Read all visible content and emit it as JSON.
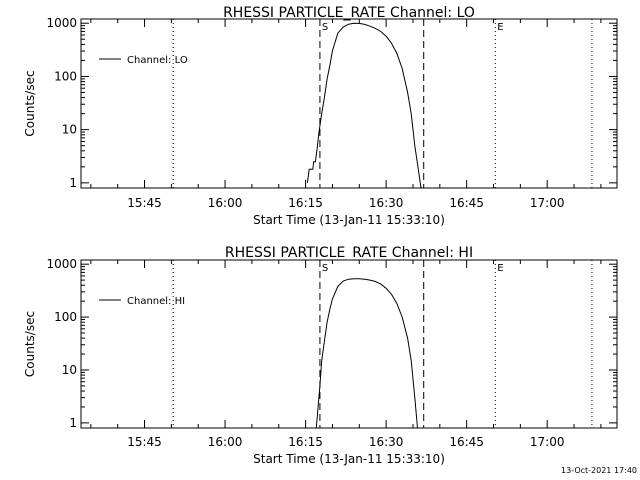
{
  "footer_timestamp": "13-Oct-2021 17:40",
  "chart_data": [
    {
      "type": "line",
      "title": "RHESSI PARTICLE_RATE Channel: LO",
      "xlabel": "Start Time (13-Jan-11 15:33:10)",
      "ylabel": "Counts/sec",
      "yscale": "log",
      "xlim": [
        "15:33:10",
        "17:13:00"
      ],
      "ylim": [
        0.8,
        1200
      ],
      "x_ticks": [
        "15:45",
        "16:00",
        "16:15",
        "16:30",
        "16:45",
        "17:00"
      ],
      "y_ticks": [
        {
          "value": 1,
          "label": "1"
        },
        {
          "value": 10,
          "label": "10"
        },
        {
          "value": 100,
          "label": "100"
        },
        {
          "value": 1000,
          "label": "1000"
        }
      ],
      "legend": {
        "position": "top-left",
        "entries": [
          "Channel: LO"
        ]
      },
      "markers": [
        {
          "time": "16:17:40",
          "label": "S",
          "style": "dashed"
        },
        {
          "time": "16:37:00",
          "label": "",
          "style": "dashed"
        },
        {
          "time": "15:50:20",
          "label": "",
          "style": "dotted"
        },
        {
          "time": "16:50:20",
          "label": "E",
          "style": "dotted"
        },
        {
          "time": "17:08:20",
          "label": "",
          "style": "dotted"
        }
      ],
      "series": [
        {
          "name": "Channel: LO",
          "x": [
            "16:15:20",
            "16:15:40",
            "16:16:20",
            "16:16:30",
            "16:16:50",
            "16:17:10",
            "16:17:30",
            "16:18:00",
            "16:18:30",
            "16:19:00",
            "16:19:30",
            "16:20:00",
            "16:21:00",
            "16:22:00",
            "16:23:00",
            "16:24:00",
            "16:25:00",
            "16:26:00",
            "16:27:00",
            "16:28:00",
            "16:29:00",
            "16:30:00",
            "16:31:00",
            "16:32:00",
            "16:33:00",
            "16:34:00",
            "16:34:40",
            "16:35:20",
            "16:36:00",
            "16:36:30"
          ],
          "y": [
            1.0,
            1.8,
            1.8,
            2.5,
            2.5,
            4.5,
            9.0,
            20,
            40,
            90,
            160,
            300,
            650,
            850,
            960,
            1000,
            990,
            950,
            880,
            800,
            700,
            570,
            420,
            270,
            140,
            50,
            20,
            5.0,
            1.8,
            0.8
          ]
        }
      ]
    },
    {
      "type": "line",
      "title": "RHESSI PARTICLE_RATE Channel: HI",
      "xlabel": "Start Time (13-Jan-11 15:33:10)",
      "ylabel": "Counts/sec",
      "yscale": "log",
      "xlim": [
        "15:33:10",
        "17:13:00"
      ],
      "ylim": [
        0.8,
        1200
      ],
      "x_ticks": [
        "15:45",
        "16:00",
        "16:15",
        "16:30",
        "16:45",
        "17:00"
      ],
      "y_ticks": [
        {
          "value": 1,
          "label": "1"
        },
        {
          "value": 10,
          "label": "10"
        },
        {
          "value": 100,
          "label": "100"
        },
        {
          "value": 1000,
          "label": "1000"
        }
      ],
      "legend": {
        "position": "top-left",
        "entries": [
          "Channel: HI"
        ]
      },
      "markers": [
        {
          "time": "16:17:40",
          "label": "S",
          "style": "dashed"
        },
        {
          "time": "16:37:00",
          "label": "",
          "style": "dashed"
        },
        {
          "time": "15:50:20",
          "label": "",
          "style": "dotted"
        },
        {
          "time": "16:50:20",
          "label": "E",
          "style": "dotted"
        },
        {
          "time": "17:08:20",
          "label": "",
          "style": "dotted"
        }
      ],
      "series": [
        {
          "name": "Channel: HI",
          "x": [
            "16:17:00",
            "16:17:20",
            "16:17:40",
            "16:18:00",
            "16:18:30",
            "16:19:00",
            "16:19:30",
            "16:20:00",
            "16:21:00",
            "16:22:00",
            "16:23:00",
            "16:24:00",
            "16:25:00",
            "16:26:00",
            "16:27:00",
            "16:28:00",
            "16:29:00",
            "16:30:00",
            "16:31:00",
            "16:32:00",
            "16:33:00",
            "16:34:00",
            "16:34:40",
            "16:35:20",
            "16:35:50"
          ],
          "y": [
            0.8,
            2,
            5,
            15,
            35,
            80,
            140,
            220,
            380,
            480,
            520,
            530,
            530,
            520,
            500,
            470,
            420,
            350,
            270,
            180,
            100,
            40,
            15,
            3,
            0.8
          ]
        }
      ]
    }
  ]
}
